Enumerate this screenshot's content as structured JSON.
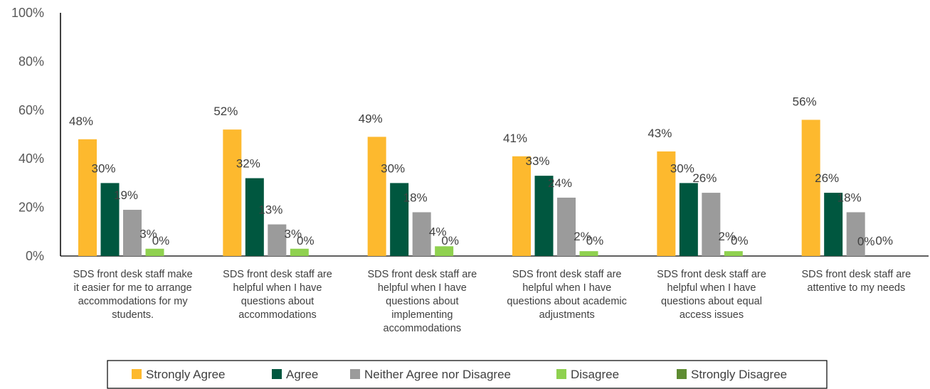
{
  "chart_data": {
    "type": "bar",
    "categories": [
      "SDS front desk staff make it easier for me to arrange accommodations for my students.",
      "SDS front desk staff are helpful when I have questions about accommodations",
      "SDS front desk staff are helpful when I have questions about implementing accommodations",
      "SDS front desk staff are helpful when I have questions about academic adjustments",
      "SDS front desk staff are helpful when I have questions about equal access issues",
      "SDS front desk staff are attentive to my needs"
    ],
    "category_lines": [
      [
        "SDS front desk staff make",
        "it easier for me to arrange",
        "accommodations for my",
        "students."
      ],
      [
        "SDS front desk staff are",
        "helpful when I have",
        "questions about",
        "accommodations"
      ],
      [
        "SDS front desk staff are",
        "helpful when I have",
        "questions about",
        "implementing",
        "accommodations"
      ],
      [
        "SDS front desk staff are",
        "helpful when I have",
        "questions about academic",
        "adjustments"
      ],
      [
        "SDS front desk staff are",
        "helpful when I have",
        "questions about equal",
        "access issues"
      ],
      [
        "SDS front desk staff are",
        "attentive to my needs"
      ]
    ],
    "series": [
      {
        "name": "Strongly Agree",
        "color": "#FDB92E",
        "values": [
          48,
          52,
          49,
          41,
          43,
          56
        ]
      },
      {
        "name": "Agree",
        "color": "#00573F",
        "values": [
          30,
          32,
          30,
          33,
          30,
          26
        ]
      },
      {
        "name": "Neither Agree nor Disagree",
        "color": "#9B9B9B",
        "values": [
          19,
          13,
          18,
          24,
          26,
          18
        ]
      },
      {
        "name": "Disagree",
        "color": "#8FD14F",
        "values": [
          3,
          3,
          4,
          2,
          2,
          0
        ]
      },
      {
        "name": "Strongly Disagree",
        "color": "#5E8C31",
        "values": [
          0,
          0,
          0,
          0,
          0,
          0
        ]
      }
    ],
    "value_suffix": "%",
    "yticks": [
      "0%",
      "20%",
      "40%",
      "60%",
      "80%",
      "100%"
    ],
    "ylim": [
      0,
      100
    ],
    "grid": false,
    "legend_position": "bottom"
  }
}
